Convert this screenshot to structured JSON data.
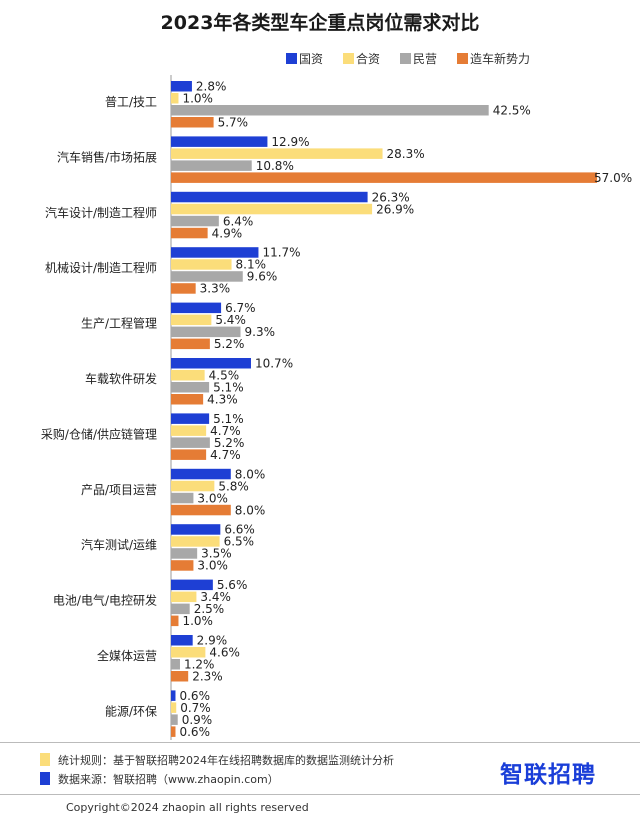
{
  "title": "2023年各类型车企重点岗位需求对比",
  "colors": {
    "国资": "#1e3fd4",
    "合资": "#fbdd7a",
    "民营": "#a8a8a8",
    "造车新势力": "#e57c35"
  },
  "chart_data": {
    "type": "bar",
    "orientation": "horizontal",
    "title": "2023年各类型车企重点岗位需求对比",
    "unit": "%",
    "legend_position": "top",
    "grid": false,
    "xlim": [
      0,
      57
    ],
    "categories": [
      "普工/技工",
      "汽车销售/市场拓展",
      "汽车设计/制造工程师",
      "机械设计/制造工程师",
      "生产/工程管理",
      "车载软件研发",
      "采购/仓储/供应链管理",
      "产品/项目运营",
      "汽车测试/运维",
      "电池/电气/电控研发",
      "全媒体运营",
      "能源/环保"
    ],
    "series": [
      {
        "name": "国资",
        "color": "#1e3fd4",
        "values": [
          2.8,
          12.9,
          26.3,
          11.7,
          6.7,
          10.7,
          5.1,
          8.0,
          6.6,
          5.6,
          2.9,
          0.6
        ],
        "labels": [
          "2.8%",
          "12.9%",
          "26.3%",
          "11.7%",
          "6.7%",
          "10.7%",
          "5.1%",
          "8.0%",
          "6.6%",
          "5.6%",
          "2.9%",
          "0.6%"
        ]
      },
      {
        "name": "合资",
        "color": "#fbdd7a",
        "values": [
          1.0,
          28.3,
          26.9,
          8.1,
          5.4,
          4.5,
          4.7,
          5.8,
          6.5,
          3.4,
          4.6,
          0.7
        ],
        "labels": [
          "1.0%",
          "28.3%",
          "26.9%",
          "8.1%",
          "5.4%",
          "4.5%",
          "4.7%",
          "5.8%",
          "6.5%",
          "3.4%",
          "4.6%",
          "0.7%"
        ]
      },
      {
        "name": "民营",
        "color": "#a8a8a8",
        "values": [
          42.5,
          10.8,
          6.4,
          9.6,
          9.3,
          5.1,
          5.2,
          3.0,
          3.5,
          2.5,
          1.2,
          0.9
        ],
        "labels": [
          "42.5%",
          "10.8%",
          "6.4%",
          "9.6%",
          "9.3%",
          "5.1%",
          "5.2%",
          "3.0%",
          "3.5%",
          "2.5%",
          "1.2%",
          "0.9%"
        ]
      },
      {
        "name": "造车新势力",
        "color": "#e57c35",
        "values": [
          5.7,
          57.0,
          4.9,
          3.3,
          5.2,
          4.3,
          4.7,
          8.0,
          3.0,
          1.0,
          2.3,
          0.6
        ],
        "labels": [
          "5.7%",
          "57.0%",
          "4.9%",
          "3.3%",
          "5.2%",
          "4.3%",
          "4.7%",
          "8.0%",
          "3.0%",
          "1.0%",
          "2.3%",
          "0.6%"
        ]
      }
    ]
  },
  "footer": {
    "rule_text": "统计规则：基于智联招聘2024年在线招聘数据库的数据监测统计分析",
    "source_text": "数据来源：智联招聘（www.zhaopin.com）",
    "brand": "智联招聘",
    "copyright": "Copyright©2024 zhaopin all rights reserved"
  }
}
